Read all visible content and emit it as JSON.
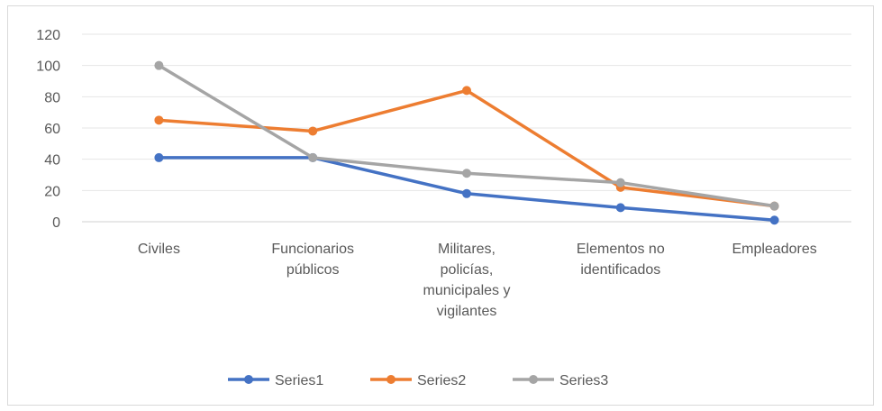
{
  "chart_data": {
    "type": "line",
    "categories": [
      [
        "Civiles"
      ],
      [
        "Funcionarios",
        "públicos"
      ],
      [
        "Militares,",
        "policías,",
        "municipales y",
        "vigilantes"
      ],
      [
        "Elementos no",
        "identificados"
      ],
      [
        "Empleadores"
      ]
    ],
    "series": [
      {
        "name": "Series1",
        "color": "#4472C4",
        "values": [
          41,
          41,
          18,
          9,
          1
        ]
      },
      {
        "name": "Series2",
        "color": "#ED7D31",
        "values": [
          65,
          58,
          84,
          22,
          10
        ]
      },
      {
        "name": "Series3",
        "color": "#A5A5A5",
        "values": [
          100,
          41,
          31,
          25,
          10
        ]
      }
    ],
    "ylim": [
      0,
      120
    ],
    "yticks": [
      0,
      20,
      40,
      60,
      80,
      100,
      120
    ],
    "grid": true,
    "legend": "bottom"
  }
}
